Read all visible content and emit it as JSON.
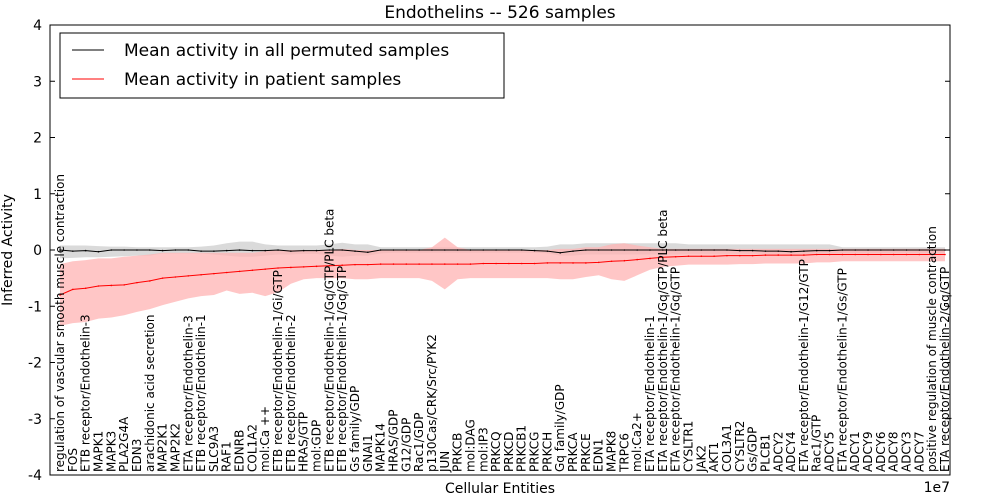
{
  "chart_data": {
    "type": "line",
    "title": "Endothelins -- 526 samples",
    "xlabel": "Cellular Entities",
    "ylabel": "Inferred Activity",
    "x_offset_label": "1e7",
    "ylim": [
      -4,
      4
    ],
    "yticks": [
      -4,
      -3,
      -2,
      -1,
      0,
      1,
      2,
      3,
      4
    ],
    "legend": {
      "placement": "top-left",
      "entries": [
        {
          "label": "Mean activity in all permuted samples",
          "color": "#000000"
        },
        {
          "label": "Mean activity in patient samples",
          "color": "#ff0000"
        }
      ]
    },
    "categories": [
      "regulation of vascular smooth muscle contraction",
      "FOS",
      "ETB receptor/Endothelin-3",
      "MAPK1",
      "MAPK3",
      "PLA2G4A",
      "EDN3",
      "arachidonic acid secretion",
      "MAP2K1",
      "MAP2K2",
      "ETA receptor/Endothelin-3",
      "ETB receptor/Endothelin-1",
      "SLC9A3",
      "RAF1",
      "EDNRB",
      "COL1A2",
      "mol:Ca ++",
      "ETB receptor/Endothelin-1/Gi/GTP",
      "ETB receptor/Endothelin-2",
      "HRAS/GTP",
      "mol:GDP",
      "ETB receptor/Endothelin-1/Gq/GTP/PLC beta",
      "ETB receptor/Endothelin-1/Gq/GTP",
      "Gs family/GDP",
      "GNAI1",
      "MAPK14",
      "HRAS/GDP",
      "G12/GDP",
      "Rac1/GDP",
      "p130Cas/CRK/Src/PYK2",
      "JUN",
      "PRKCB",
      "mol:DAG",
      "mol:IP3",
      "PRKCQ",
      "PRKCD",
      "PRKCB1",
      "PRKCG",
      "PRKCH",
      "Gq family/GDP",
      "PRKCA",
      "PRKCE",
      "EDN1",
      "MAPK8",
      "TRPC6",
      "mol:Ca2+",
      "ETA receptor/Endothelin-1",
      "ETA receptor/Endothelin-1/Gq/GTP/PLC beta",
      "ETA receptor/Endothelin-1/Gq/GTP",
      "CYSLTR1",
      "JAK2",
      "AKT1",
      "COL3A1",
      "CYSLTR2",
      "Gs/GDP",
      "PLCB1",
      "ADCY2",
      "ADCY4",
      "ETA receptor/Endothelin-1/G12/GTP",
      "Rac1/GTP",
      "ADCY5",
      "ETA receptor/Endothelin-1/Gs/GTP",
      "ADCY1",
      "ADCY9",
      "ADCY6",
      "ADCY8",
      "ADCY3",
      "ADCY7",
      "positive regulation of muscle contraction",
      "ETA receptor/Endothelin-2/Gq/GTP"
    ],
    "series": [
      {
        "name": "Mean activity in all permuted samples",
        "color": "#000000",
        "band_color": "#bbbbbb",
        "values": [
          0,
          -0.02,
          -0.01,
          -0.03,
          0,
          0,
          0,
          0,
          -0.01,
          0,
          0,
          -0.02,
          -0.02,
          -0.01,
          0,
          -0.01,
          -0.01,
          0,
          -0.02,
          -0.01,
          -0.01,
          0,
          0,
          -0.02,
          -0.04,
          0,
          0,
          0,
          0,
          0,
          0,
          0,
          0,
          0,
          0,
          0,
          0,
          -0.01,
          -0.02,
          -0.05,
          -0.02,
          0,
          0,
          0,
          0,
          0,
          0,
          0,
          0,
          0,
          0,
          0,
          0,
          -0.01,
          -0.01,
          -0.02,
          -0.02,
          -0.03,
          -0.02,
          -0.01,
          -0.01,
          0,
          0,
          0,
          0,
          0,
          0,
          0,
          0,
          0
        ],
        "lower": [
          -0.15,
          -0.14,
          -0.13,
          -0.13,
          -0.12,
          -0.11,
          -0.1,
          -0.1,
          -0.06,
          -0.06,
          -0.06,
          -0.06,
          -0.08,
          -0.1,
          -0.12,
          -0.12,
          -0.1,
          -0.08,
          -0.08,
          -0.07,
          -0.07,
          -0.1,
          -0.12,
          -0.1,
          -0.1,
          -0.06,
          -0.05,
          -0.05,
          -0.05,
          -0.05,
          -0.05,
          -0.05,
          -0.05,
          -0.05,
          -0.05,
          -0.05,
          -0.05,
          -0.05,
          -0.06,
          -0.1,
          -0.1,
          -0.08,
          -0.08,
          -0.08,
          -0.08,
          -0.08,
          -0.08,
          -0.08,
          -0.08,
          -0.07,
          -0.07,
          -0.07,
          -0.07,
          -0.07,
          -0.07,
          -0.07,
          -0.07,
          -0.07,
          -0.07,
          -0.07,
          -0.07,
          -0.06,
          -0.06,
          -0.06,
          -0.06,
          -0.06,
          -0.06,
          -0.06,
          -0.06,
          -0.06
        ],
        "upper": [
          0.08,
          0.08,
          0.08,
          0.07,
          0.06,
          0.06,
          0.05,
          0.05,
          0.05,
          0.05,
          0.05,
          0.06,
          0.08,
          0.12,
          0.15,
          0.15,
          0.1,
          0.08,
          0.08,
          0.08,
          0.08,
          0.1,
          0.13,
          0.1,
          0.1,
          0.05,
          0.05,
          0.05,
          0.05,
          0.05,
          0.05,
          0.05,
          0.05,
          0.05,
          0.05,
          0.05,
          0.05,
          0.05,
          0.06,
          0.1,
          0.1,
          0.12,
          0.12,
          0.12,
          0.12,
          0.12,
          0.12,
          0.12,
          0.12,
          0.1,
          0.1,
          0.1,
          0.1,
          0.1,
          0.1,
          0.1,
          0.1,
          0.1,
          0.1,
          0.1,
          0.1,
          0.05,
          0.05,
          0.05,
          0.05,
          0.05,
          0.05,
          0.05,
          0.05,
          0.05
        ]
      },
      {
        "name": "Mean activity in patient samples",
        "color": "#ff0000",
        "band_color": "#ffb3b3",
        "values": [
          -0.8,
          -0.7,
          -0.68,
          -0.64,
          -0.63,
          -0.62,
          -0.58,
          -0.55,
          -0.5,
          -0.48,
          -0.46,
          -0.44,
          -0.42,
          -0.4,
          -0.38,
          -0.36,
          -0.34,
          -0.32,
          -0.31,
          -0.3,
          -0.29,
          -0.28,
          -0.27,
          -0.26,
          -0.26,
          -0.25,
          -0.25,
          -0.25,
          -0.25,
          -0.25,
          -0.25,
          -0.25,
          -0.25,
          -0.24,
          -0.24,
          -0.24,
          -0.24,
          -0.24,
          -0.23,
          -0.23,
          -0.23,
          -0.23,
          -0.22,
          -0.2,
          -0.19,
          -0.17,
          -0.15,
          -0.13,
          -0.12,
          -0.11,
          -0.11,
          -0.11,
          -0.1,
          -0.1,
          -0.1,
          -0.09,
          -0.09,
          -0.09,
          -0.09,
          -0.08,
          -0.08,
          -0.08,
          -0.08,
          -0.08,
          -0.08,
          -0.08,
          -0.08,
          -0.08,
          -0.08,
          -0.08
        ],
        "lower": [
          -1.35,
          -1.3,
          -1.28,
          -1.22,
          -1.2,
          -1.16,
          -1.1,
          -1.05,
          -0.98,
          -0.92,
          -0.86,
          -0.82,
          -0.8,
          -0.72,
          -0.78,
          -0.76,
          -0.82,
          -0.75,
          -0.6,
          -0.52,
          -0.5,
          -0.5,
          -0.5,
          -0.52,
          -0.52,
          -0.5,
          -0.5,
          -0.5,
          -0.5,
          -0.55,
          -0.7,
          -0.52,
          -0.5,
          -0.5,
          -0.5,
          -0.5,
          -0.5,
          -0.5,
          -0.5,
          -0.52,
          -0.52,
          -0.48,
          -0.45,
          -0.52,
          -0.55,
          -0.45,
          -0.35,
          -0.3,
          -0.28,
          -0.26,
          -0.26,
          -0.26,
          -0.26,
          -0.25,
          -0.25,
          -0.24,
          -0.24,
          -0.24,
          -0.24,
          -0.22,
          -0.22,
          -0.2,
          -0.2,
          -0.2,
          -0.2,
          -0.2,
          -0.2,
          -0.2,
          -0.2,
          -0.2
        ],
        "upper": [
          -0.25,
          -0.2,
          -0.18,
          -0.15,
          -0.15,
          -0.12,
          -0.1,
          -0.08,
          -0.05,
          -0.05,
          -0.05,
          -0.05,
          -0.05,
          -0.05,
          -0.05,
          -0.05,
          -0.02,
          0.0,
          0.0,
          0.0,
          0.0,
          0.0,
          0.02,
          0.0,
          0.0,
          0.0,
          0.0,
          0.0,
          0.0,
          0.05,
          0.22,
          0.05,
          0.0,
          0.0,
          0.0,
          0.0,
          0.0,
          0.0,
          0.0,
          0.02,
          0.02,
          0.05,
          0.05,
          0.1,
          0.12,
          0.08,
          0.05,
          0.02,
          0.02,
          0.02,
          0.02,
          0.02,
          0.02,
          0.02,
          0.02,
          0.02,
          0.02,
          0.02,
          0.02,
          0.02,
          0.02,
          0.02,
          0.02,
          0.02,
          0.02,
          0.02,
          0.02,
          0.02,
          0.02,
          0.02
        ]
      }
    ]
  }
}
